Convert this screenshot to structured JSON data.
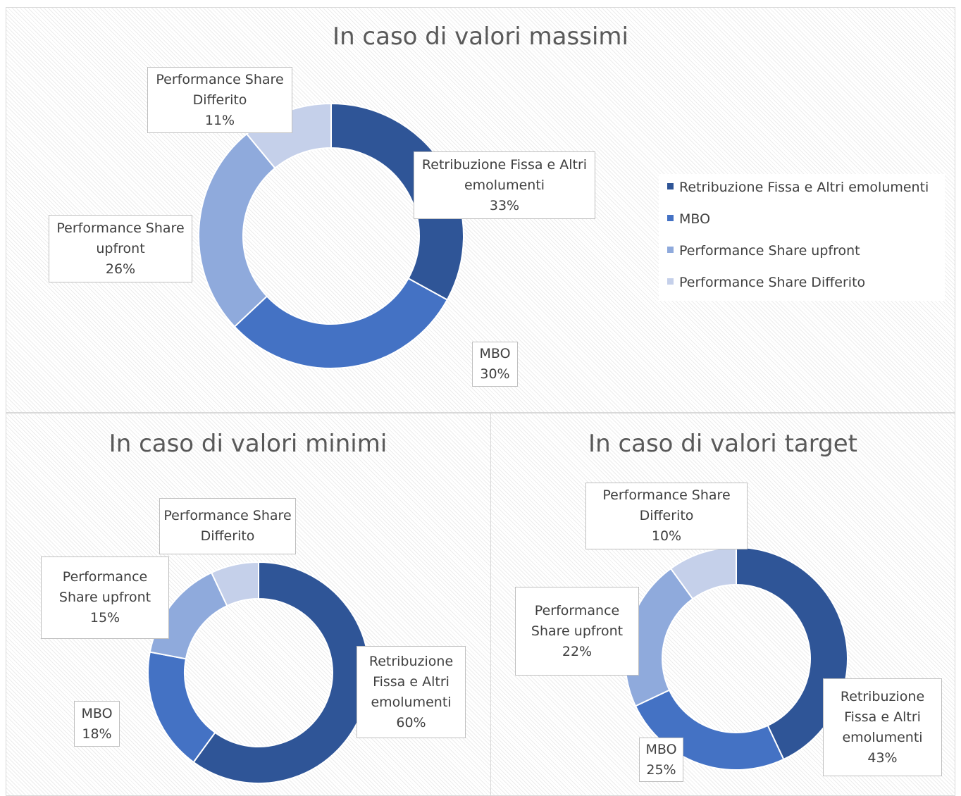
{
  "chart_data": [
    {
      "type": "donut",
      "title": "In caso di valori massimi",
      "categories": [
        "Retribuzione Fissa e Altri emolumenti",
        "MBO",
        "Performance Share upfront",
        "Performance Share Differito"
      ],
      "values": [
        33,
        30,
        26,
        11
      ],
      "value_labels": [
        "33%",
        "30%",
        "26%",
        "11%"
      ],
      "colors": [
        "#2f5597",
        "#4472c4",
        "#8faadc",
        "#c5d0ea"
      ],
      "legend": "right"
    },
    {
      "type": "donut",
      "title": "In caso di valori minimi",
      "categories": [
        "Retribuzione Fissa e Altri emolumenti",
        "MBO",
        "Performance Share upfront",
        "Performance Share Differito"
      ],
      "values": [
        60,
        18,
        15,
        7
      ],
      "value_labels": [
        "60%",
        "18%",
        "15%",
        null
      ],
      "colors": [
        "#2f5597",
        "#4472c4",
        "#8faadc",
        "#c5d0ea"
      ]
    },
    {
      "type": "donut",
      "title": "In caso di valori target",
      "categories": [
        "Retribuzione Fissa e Altri emolumenti",
        "MBO",
        "Performance Share upfront",
        "Performance Share Differito"
      ],
      "values": [
        43,
        25,
        22,
        10
      ],
      "value_labels": [
        "43%",
        "25%",
        "22%",
        "10%"
      ],
      "colors": [
        "#2f5597",
        "#4472c4",
        "#8faadc",
        "#c5d0ea"
      ]
    }
  ]
}
